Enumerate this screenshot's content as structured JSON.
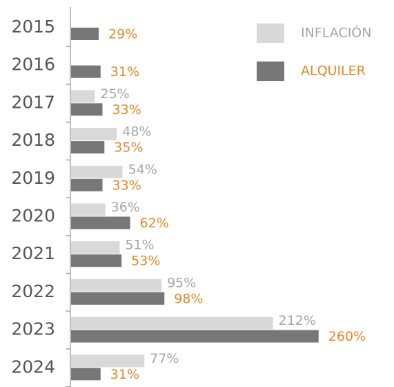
{
  "chart_data": {
    "type": "hbar",
    "categories": [
      "2015",
      "2016",
      "2017",
      "2018",
      "2019",
      "2020",
      "2021",
      "2022",
      "2023",
      "2024"
    ],
    "series": [
      {
        "name": "INFLACIÓN",
        "color": "#d9d9d9",
        "label_color": "#a6a6a6",
        "values": [
          null,
          null,
          25,
          48,
          54,
          36,
          51,
          95,
          212,
          77
        ],
        "value_labels": [
          null,
          null,
          "25%",
          "48%",
          "54%",
          "36%",
          "51%",
          "95%",
          "212%",
          "77%"
        ]
      },
      {
        "name": "ALQUILER",
        "color": "#777777",
        "label_color": "#e8872a",
        "values": [
          29,
          31,
          33,
          35,
          33,
          62,
          53,
          98,
          260,
          31
        ],
        "value_labels": [
          "29%",
          "31%",
          "33%",
          "35%",
          "33%",
          "62%",
          "53%",
          "98%",
          "260%",
          "31%"
        ]
      }
    ],
    "legend": "top-right"
  }
}
